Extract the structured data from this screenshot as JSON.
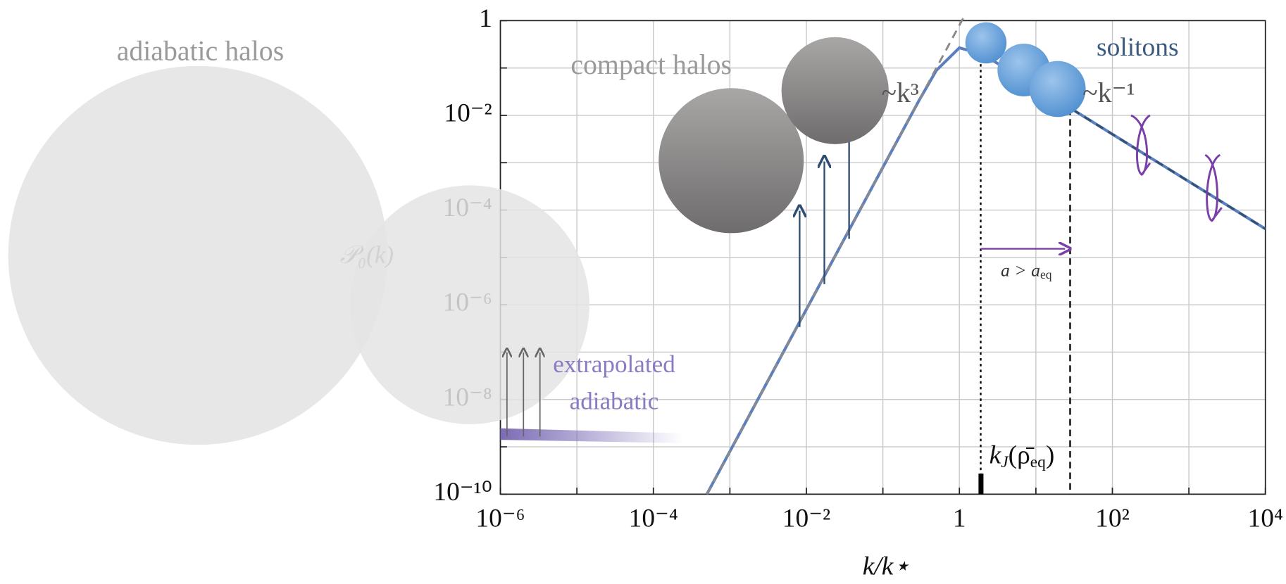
{
  "chart_data": {
    "type": "line",
    "xlabel": "k/k⋆",
    "ylabel": "𝒫₀(k)",
    "xlog": true,
    "ylog": true,
    "grid": true,
    "xlim": [
      1e-06,
      10000
    ],
    "ylim": [
      1e-10,
      1
    ],
    "xticks": [
      {
        "value": 1e-06,
        "label": "10⁻⁶"
      },
      {
        "value": 0.0001,
        "label": "10⁻⁴"
      },
      {
        "value": 0.01,
        "label": "10⁻²"
      },
      1,
      {
        "value": 100,
        "label": "10²"
      },
      {
        "value": 10000,
        "label": "10⁴"
      }
    ],
    "minor_xticks": [
      1e-05,
      0.001,
      0.1,
      10,
      1000
    ],
    "yticks": [
      1,
      {
        "value": 0.01,
        "label": "10⁻²"
      },
      {
        "value": 0.0001,
        "label": "10⁻⁴"
      },
      {
        "value": 1e-06,
        "label": "10⁻⁶"
      },
      {
        "value": 1e-08,
        "label": "10⁻⁸"
      },
      {
        "value": 1e-10,
        "label": "10⁻¹⁰"
      }
    ],
    "minor_yticks": [
      0.1,
      0.001,
      1e-05,
      1e-07,
      1e-09
    ],
    "series": [
      {
        "color": "#5b7fbf",
        "style": "solid",
        "x": [
          0.0005,
          0.001,
          0.003,
          0.01,
          0.03,
          0.1,
          0.3,
          0.5,
          1,
          2,
          5,
          10,
          30,
          100,
          300,
          1000,
          3000,
          10000
        ],
        "values": [
          1e-10,
          8e-10,
          2.16e-08,
          8e-07,
          2.16e-05,
          0.0008,
          0.02126,
          0.0889,
          0.267,
          0.194,
          0.0799,
          0.04,
          0.01333,
          0.004,
          0.001333,
          0.0004,
          0.0001333,
          4e-05
        ]
      },
      {
        "color": "#8a8a8a",
        "style": "dashed",
        "x": [
          0.0005,
          1.2
        ],
        "values": [
          1e-10,
          1.38
        ]
      },
      {
        "color": "#34506e",
        "style": "dashed",
        "x": [
          30,
          10000
        ],
        "values": [
          0.01333,
          4e-05
        ]
      }
    ],
    "markers": [
      {
        "x": 1.9,
        "y": 0.16,
        "style": "dotted"
      },
      {
        "x": 28,
        "y": 0.014,
        "style": "dashed"
      }
    ],
    "annotations": {
      "adiabatic_halos": "adiabatic halos",
      "compact_halos": "compact halos",
      "solitons": "solitons",
      "k3": "~k³",
      "kminus1": "~k⁻¹",
      "extrapolated": "extrapolated",
      "adiabatic": "adiabatic",
      "a_gt": "a > a",
      "a_sub": "eq",
      "kj_k": "k",
      "kj_sub": "J",
      "kj_mid": "(ρ̄",
      "kj_sub2": "eq",
      "kj_end": ")"
    }
  }
}
